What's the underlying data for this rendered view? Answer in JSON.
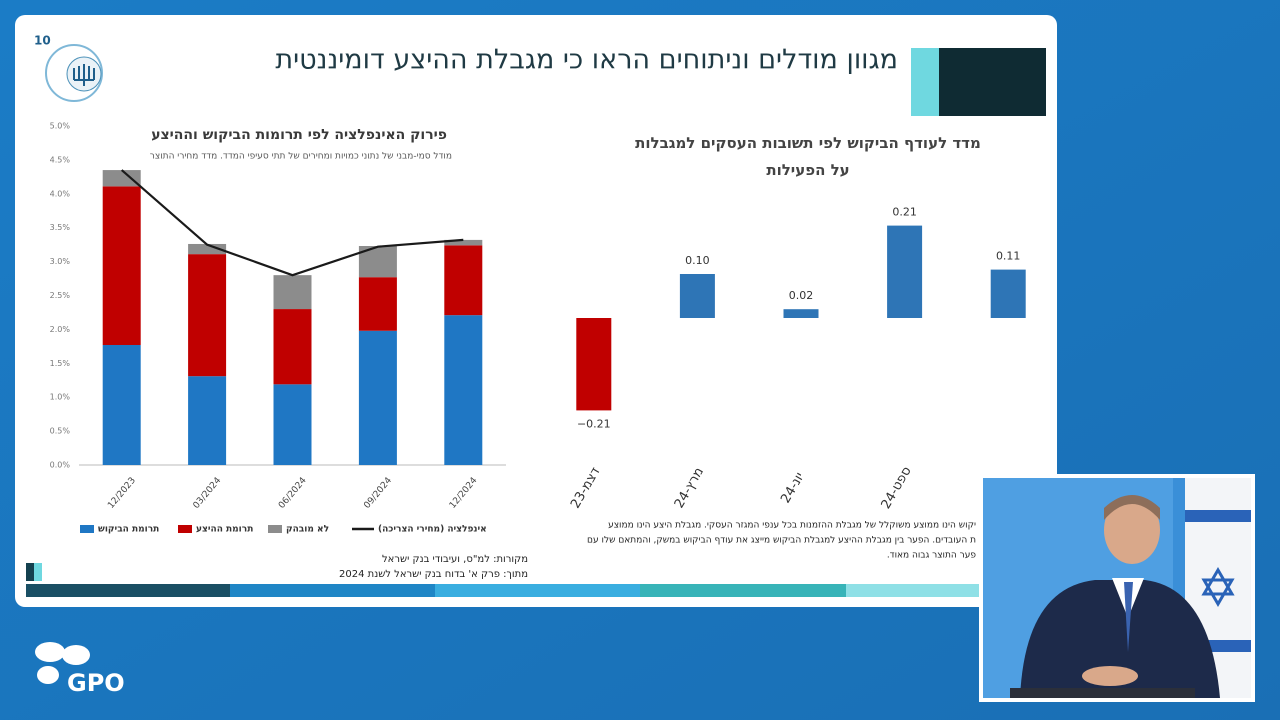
{
  "slide": {
    "number": "10",
    "title": "מגוון מודלים וניתוחים הראו כי מגבלת ההיצע דומיננטית",
    "notes": [
      "יקוש הינו ממוצע משוקלל של מגבלת ההזמנות בכל ענפי המגזר העסקי. מגבלת היצע הינו ממוצע",
      "ת העובדים. הפער בין מגבלת ההיצע למגבלת הביקוש מייצג את עודף הביקוש במשק, והמתאם שלו עם",
      "פער התוצר גבוה מאוד."
    ],
    "sources": [
      "מקורות: למ\"ס, ועיבודי בנק ישראל",
      "מתוך: פרק א' בדוח בנק ישראל לשנת 2024"
    ]
  },
  "logo": "GPO",
  "chart_data": [
    {
      "type": "bar",
      "stacked": true,
      "title": "פירוק האינפלציה לפי תרומות הביקוש וההיצע",
      "subtitle": "מודל סמי-מבני של נתוני כמויות ומחירים של תתי סעיפי המדד. מדד מחירי התוצר",
      "categories": [
        "12/2023",
        "03/2024",
        "06/2024",
        "09/2024",
        "12/2024"
      ],
      "series": [
        {
          "name": "תרומת הביקוש",
          "color": "#1f77c4",
          "values": [
            1.77,
            1.31,
            1.19,
            1.98,
            2.21
          ]
        },
        {
          "name": "תרומת ההיצע",
          "color": "#c00000",
          "values": [
            2.34,
            1.8,
            1.11,
            0.79,
            1.03
          ]
        },
        {
          "name": "לא מובהק",
          "color": "#8c8c8c",
          "values": [
            0.24,
            0.15,
            0.5,
            0.46,
            0.08
          ]
        },
        {
          "name": "אינפלציה (מחירי הצריכה)",
          "color": "#1a1a1a",
          "type": "line",
          "values": [
            4.35,
            3.25,
            2.8,
            3.22,
            3.32
          ]
        }
      ],
      "ylim": [
        0,
        5
      ],
      "yticks": [
        {
          "value": 0,
          "label": "0.0%"
        },
        {
          "value": 0.5,
          "label": "0.5%"
        },
        {
          "value": 1,
          "label": "1.0%"
        },
        {
          "value": 1.5,
          "label": "1.5%"
        },
        {
          "value": 2,
          "label": "2.0%"
        },
        {
          "value": 2.5,
          "label": "2.5%"
        },
        {
          "value": 3,
          "label": "3.0%"
        },
        {
          "value": 3.5,
          "label": "3.5%"
        },
        {
          "value": 4,
          "label": "4.0%"
        },
        {
          "value": 4.5,
          "label": "4.5%"
        },
        {
          "value": 5,
          "label": "5.0%"
        }
      ],
      "grid": false
    },
    {
      "type": "bar",
      "title": "מדד לעודף הביקוש לפי תשובות העסקים למגבלות על הפעילות",
      "categories": [
        "דצמ-23",
        "מרץ-24",
        "יונ-24",
        "ספט-24",
        null
      ],
      "values": [
        -0.21,
        0.1,
        0.02,
        0.21,
        0.11
      ],
      "value_labels": [
        "−0.21",
        "0.10",
        "0.02",
        "0.21",
        "0.11"
      ],
      "positive_color": "#2e75b6",
      "negative_color": "#c00000"
    }
  ]
}
